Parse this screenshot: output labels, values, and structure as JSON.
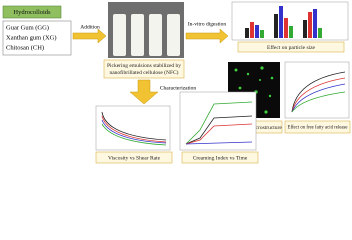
{
  "hydrocolloids": {
    "title": "Hydrocolloids",
    "items": [
      "Guar Gum (GG)",
      "Xanthan gum (XG)",
      "Chitosan (CH)"
    ]
  },
  "steps": {
    "addition": "Addition",
    "digestion": "In-vitro digestion",
    "characterization": "Characterization"
  },
  "emulsion": {
    "caption_line1": "Pickering emulsions stabilized by",
    "caption_line2": "nanofibrillated cellulose (NFC)"
  },
  "results": {
    "particle_size": "Effect on particle size",
    "microstructure": "Effect on microstructure",
    "ffa_line1": "Effect on free fatty acid release",
    "viscosity": "Viscosity vs Shear Rate",
    "creaming": "Creaming Index vs Time"
  }
}
